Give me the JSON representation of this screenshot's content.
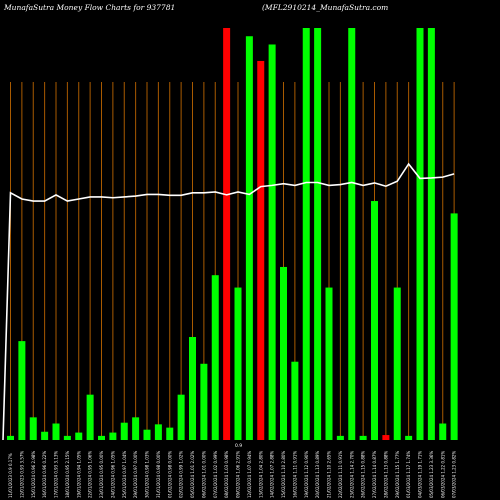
{
  "header": {
    "left": "MunafaSutra  Money Flow  Charts for 937781",
    "right": "(MFL2910214_MunafaSutra.com"
  },
  "chart_data": {
    "type": "bar",
    "title": "MunafaSutra  Money Flow  Charts for 937781",
    "ylim": [
      0,
      100
    ],
    "colors": {
      "up": "#00ff00",
      "down": "#ff0000",
      "grid": "#a85a00",
      "line": "#ffffff",
      "background": "#000000"
    },
    "bars": [
      {
        "label": "11/01/2023 0.9 0.17%",
        "value": 1,
        "color": "up"
      },
      {
        "label": "12/01/2023 0.93 3.57%",
        "value": 24,
        "color": "up"
      },
      {
        "label": "15/01/2024 0.96 2.98%",
        "value": 5.5,
        "color": "up"
      },
      {
        "label": "16/01/2024 0.96 0.22%",
        "value": 2,
        "color": "up"
      },
      {
        "label": "17/01/2024 0.93 3.13%",
        "value": 4,
        "color": "up"
      },
      {
        "label": "18/01/2024 0.95 2.15%",
        "value": 1,
        "color": "up"
      },
      {
        "label": "19/01/2024 0.94 1.05%",
        "value": 1.8,
        "color": "up"
      },
      {
        "label": "22/01/2024 0.95 1.06%",
        "value": 11,
        "color": "up"
      },
      {
        "label": "23/01/2024 0.95 0.00%",
        "value": 1,
        "color": "up"
      },
      {
        "label": "24/01/2024 0.96 1.05%",
        "value": 1.8,
        "color": "up"
      },
      {
        "label": "25/01/2024 0.97 1.04%",
        "value": 4.2,
        "color": "up"
      },
      {
        "label": "29/01/2024 0.97 0.00%",
        "value": 5.5,
        "color": "up"
      },
      {
        "label": "30/01/2024 0.98 1.03%",
        "value": 2.5,
        "color": "up"
      },
      {
        "label": "31/01/2024 0.98 0.00%",
        "value": 3.8,
        "color": "up"
      },
      {
        "label": "01/02/2024 0.98 0.00%",
        "value": 3,
        "color": "up"
      },
      {
        "label": "02/02/2024 0.99 1.02%",
        "value": 11,
        "color": "up"
      },
      {
        "label": "05/02/2024 1.01 2.02%",
        "value": 25,
        "color": "up"
      },
      {
        "label": "06/02/2024 1.01 0.00%",
        "value": 18.5,
        "color": "up"
      },
      {
        "label": "07/02/2024 1.02 0.99%",
        "value": 40,
        "color": "up"
      },
      {
        "label": "08/02/2024 1.03 0.98%",
        "value": 100,
        "color": "down"
      },
      {
        "label": "09/02/2024 1.06 2.91%",
        "value": 37,
        "color": "up"
      },
      {
        "label": "12/02/2024 1.07 0.94%",
        "value": 98,
        "color": "up"
      },
      {
        "label": "13/02/2024 1.04 2.80%",
        "value": 92,
        "color": "down"
      },
      {
        "label": "14/02/2024 1.07 2.88%",
        "value": 96,
        "color": "up"
      },
      {
        "label": "15/02/2024 1.10 2.80%",
        "value": 42,
        "color": "up"
      },
      {
        "label": "16/02/2024 1.11 0.91%",
        "value": 19,
        "color": "up"
      },
      {
        "label": "19/02/2024 1.12 0.90%",
        "value": 100,
        "color": "up"
      },
      {
        "label": "20/02/2024 1.13 0.89%",
        "value": 100,
        "color": "up"
      },
      {
        "label": "21/02/2024 1.10 2.65%",
        "value": 37,
        "color": "up"
      },
      {
        "label": "22/02/2024 1.11 0.91%",
        "value": 1,
        "color": "up"
      },
      {
        "label": "23/02/2024 1.14 2.70%",
        "value": 100,
        "color": "up"
      },
      {
        "label": "26/02/2024 1.15 0.88%",
        "value": 1,
        "color": "up"
      },
      {
        "label": "27/02/2024 1.14 0.87%",
        "value": 58,
        "color": "up"
      },
      {
        "label": "28/02/2024 1.13 0.88%",
        "value": 1.2,
        "color": "down"
      },
      {
        "label": "29/02/2024 1.15 1.77%",
        "value": 37,
        "color": "up"
      },
      {
        "label": "01/03/2024 1.17 1.74%",
        "value": 1,
        "color": "up"
      },
      {
        "label": "04/03/2024 1.19 1.71%",
        "value": 100,
        "color": "up"
      },
      {
        "label": "05/03/2024 1.23 3.36%",
        "value": 100,
        "color": "up"
      },
      {
        "label": "06/03/2024 1.22 0.81%",
        "value": 4,
        "color": "up"
      },
      {
        "label": "07/03/2024 1.23 0.82%",
        "value": 55,
        "color": "up"
      }
    ],
    "line_values": [
      60,
      58.5,
      58,
      58,
      59.5,
      58,
      58.5,
      59,
      59,
      58.8,
      59,
      59.2,
      59.6,
      59.6,
      59.4,
      59.4,
      60,
      60,
      60.2,
      59.5,
      60.2,
      59.6,
      61.5,
      61.8,
      62.2,
      61.8,
      62.5,
      62.5,
      61.8,
      62,
      62.5,
      61.8,
      62.4,
      61.6,
      62.8,
      67,
      63.5,
      63.6,
      63.8,
      64.6
    ],
    "line_start_value": 0,
    "line_label": "0.9"
  }
}
